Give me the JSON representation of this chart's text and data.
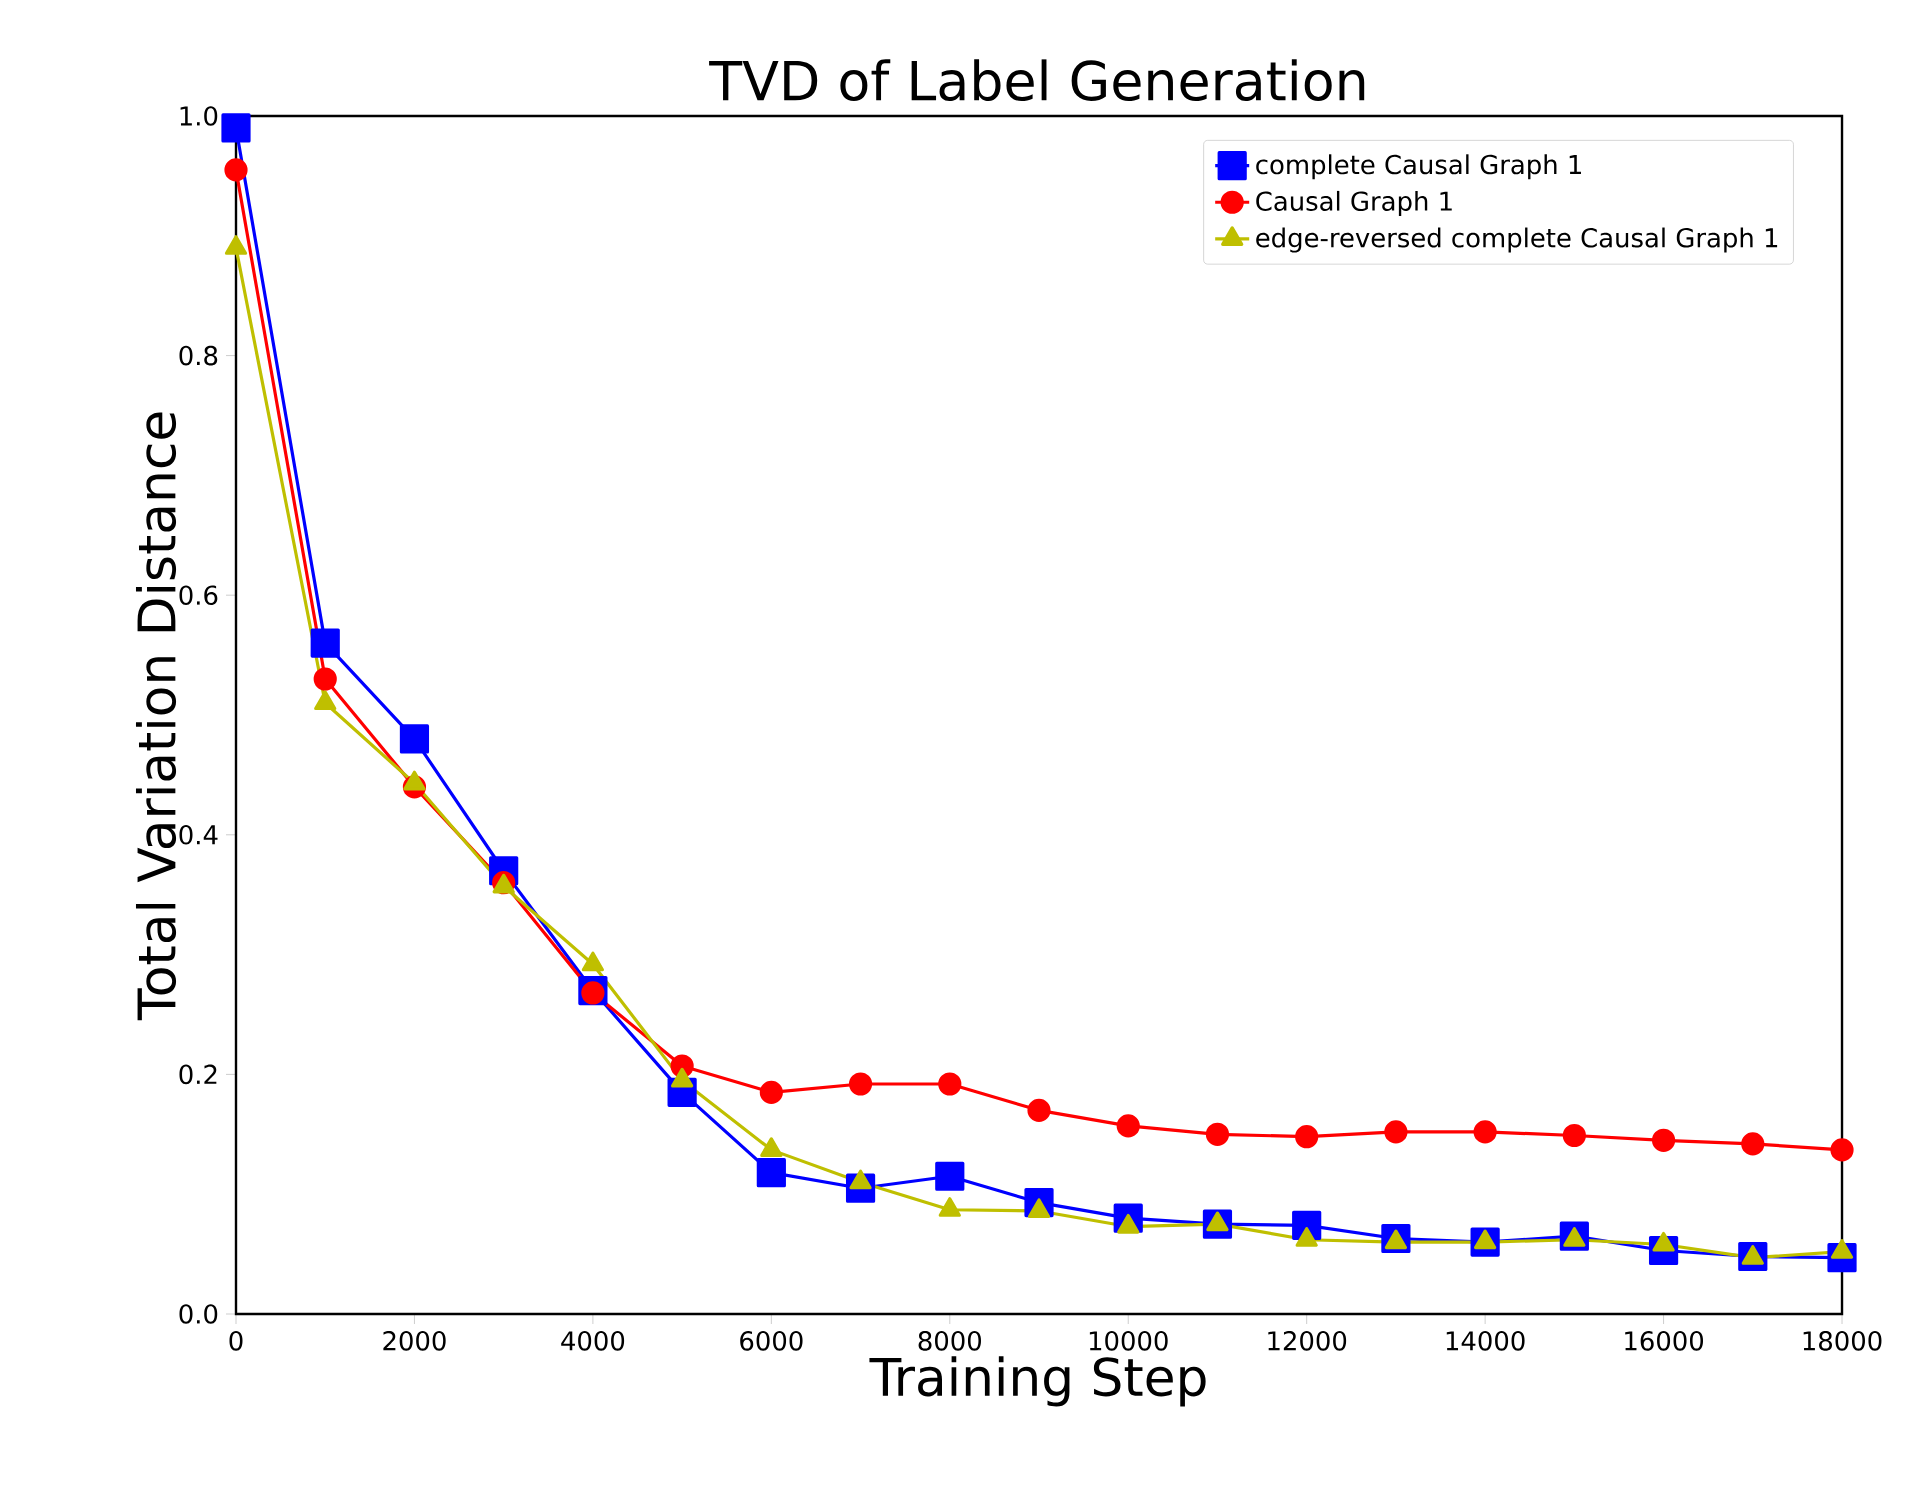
{
  "chart_data": {
    "type": "line",
    "title": "TVD of Label Generation",
    "xlabel": "Training Step",
    "ylabel": "Total Variation Distance",
    "x": [
      0,
      1000,
      2000,
      3000,
      4000,
      5000,
      6000,
      7000,
      8000,
      9000,
      10000,
      11000,
      12000,
      13000,
      14000,
      15000,
      16000,
      17000,
      18000
    ],
    "series": [
      {
        "name": "complete Causal Graph 1",
        "color": "#0000ff",
        "marker": "square",
        "values": [
          0.99,
          0.56,
          0.48,
          0.37,
          0.27,
          0.185,
          0.118,
          0.105,
          0.115,
          0.093,
          0.08,
          0.075,
          0.074,
          0.063,
          0.06,
          0.065,
          0.053,
          0.048,
          0.047
        ]
      },
      {
        "name": "Causal Graph 1",
        "color": "#ff0000",
        "marker": "circle",
        "values": [
          0.955,
          0.53,
          0.44,
          0.36,
          0.268,
          0.207,
          0.185,
          0.192,
          0.192,
          0.17,
          0.157,
          0.15,
          0.148,
          0.152,
          0.152,
          0.149,
          0.145,
          0.142,
          0.137
        ]
      },
      {
        "name": "edge-reversed complete Causal Graph 1",
        "color": "#bfbf00",
        "marker": "triangle",
        "values": [
          0.89,
          0.51,
          0.443,
          0.357,
          0.292,
          0.195,
          0.137,
          0.11,
          0.087,
          0.086,
          0.073,
          0.075,
          0.062,
          0.06,
          0.06,
          0.062,
          0.058,
          0.047,
          0.052
        ]
      }
    ],
    "xlim": [
      0,
      18000
    ],
    "ylim": [
      0.0,
      1.0
    ],
    "xticks": [
      0,
      2000,
      4000,
      6000,
      8000,
      10000,
      12000,
      14000,
      16000,
      18000
    ],
    "yticks": [
      {
        "value": 0,
        "label": "0.0"
      },
      {
        "value": 0.2,
        "label": "0.2"
      },
      {
        "value": 0.4,
        "label": "0.4"
      },
      {
        "value": 0.6,
        "label": "0.6"
      },
      {
        "value": 0.8,
        "label": "0.8"
      },
      {
        "value": 1.0,
        "label": "1.0"
      }
    ],
    "grid": false,
    "legend": "top right",
    "line_style": "solid"
  }
}
